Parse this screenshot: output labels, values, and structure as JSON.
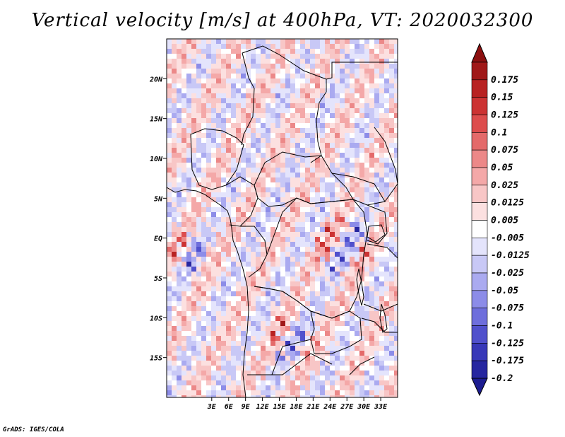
{
  "title": "Vertical velocity [m/s] at 400hPa, VT: 2020032300",
  "credit": "GrADS: IGES/COLA",
  "map": {
    "lon_range": [
      -5,
      36
    ],
    "lat_range": [
      -20,
      25
    ],
    "lat_ticks": [
      {
        "lat": 20,
        "label": "20N"
      },
      {
        "lat": 15,
        "label": "15N"
      },
      {
        "lat": 10,
        "label": "10N"
      },
      {
        "lat": 5,
        "label": "5N"
      },
      {
        "lat": 0,
        "label": "EQ"
      },
      {
        "lat": -5,
        "label": "5S"
      },
      {
        "lat": -10,
        "label": "10S"
      },
      {
        "lat": -15,
        "label": "15S"
      }
    ],
    "lon_ticks": [
      {
        "lon": 3,
        "label": "3E"
      },
      {
        "lon": 6,
        "label": "6E"
      },
      {
        "lon": 9,
        "label": "9E"
      },
      {
        "lon": 12,
        "label": "12E"
      },
      {
        "lon": 15,
        "label": "15E"
      },
      {
        "lon": 18,
        "label": "18E"
      },
      {
        "lon": 21,
        "label": "21E"
      },
      {
        "lon": 24,
        "label": "24E"
      },
      {
        "lon": 27,
        "label": "27E"
      },
      {
        "lon": 30,
        "label": "30E"
      },
      {
        "lon": 33,
        "label": "33E"
      }
    ]
  },
  "colorbar": {
    "levels": [
      {
        "label": "0.175",
        "color": "#a01818"
      },
      {
        "label": "0.15",
        "color": "#b82222"
      },
      {
        "label": "0.125",
        "color": "#cc3333"
      },
      {
        "label": "0.1",
        "color": "#dd4d4d"
      },
      {
        "label": "0.075",
        "color": "#e46a6a"
      },
      {
        "label": "0.05",
        "color": "#ec8888"
      },
      {
        "label": "0.025",
        "color": "#f4a8a8"
      },
      {
        "label": "0.0125",
        "color": "#f8c6c6"
      },
      {
        "label": "0.005",
        "color": "#fce0e0"
      },
      {
        "label": "-0.005",
        "color": "#ffffff"
      },
      {
        "label": "-0.0125",
        "color": "#e4e4fc"
      },
      {
        "label": "-0.025",
        "color": "#c8c8f6"
      },
      {
        "label": "-0.05",
        "color": "#aaaaf0"
      },
      {
        "label": "-0.075",
        "color": "#8c8ce8"
      },
      {
        "label": "-0.1",
        "color": "#6e6edc"
      },
      {
        "label": "-0.125",
        "color": "#5050cc"
      },
      {
        "label": "-0.175",
        "color": "#3838b8"
      },
      {
        "label": "-0.2",
        "color": "#2626a0"
      }
    ],
    "top_color": "#8c1010",
    "bottom_color": "#1c1c90"
  }
}
